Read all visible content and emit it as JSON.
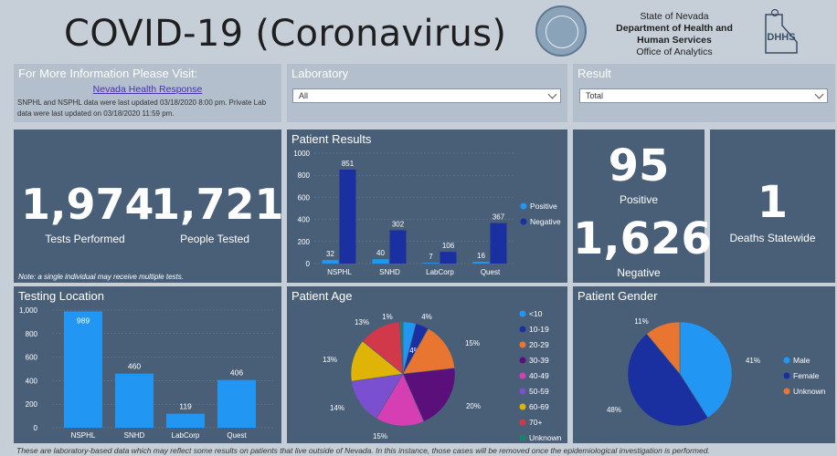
{
  "header": {
    "title": "COVID-19 (Coronavirus)",
    "org_line1": "State of Nevada",
    "org_line2": "Department of Health and",
    "org_line3": "Human Services",
    "org_line4": "Office of Analytics",
    "logo_text": "DHHS"
  },
  "info": {
    "title": "For More Information Please Visit:",
    "link": "Nevada Health Response",
    "updated": "SNPHL and NSPHL data were last updated 03/18/2020 8:00 pm.  Private Lab data were last updated on 03/18/2020 11:59 pm."
  },
  "filters": {
    "laboratory_label": "Laboratory",
    "laboratory_value": "All",
    "result_label": "Result",
    "result_value": "Total"
  },
  "kpis": {
    "tests_performed": "1,974",
    "tests_performed_label": "Tests Performed",
    "people_tested": "1,721",
    "people_tested_label": "People Tested",
    "tests_note": "Note: a single individual may receive multiple tests.",
    "positive": "95",
    "positive_label": "Positive",
    "negative": "1,626",
    "negative_label": "Negative",
    "deaths": "1",
    "deaths_label": "Deaths Statewide"
  },
  "panels": {
    "patient_results": "Patient Results",
    "testing_location": "Testing Location",
    "patient_age": "Patient Age",
    "patient_gender": "Patient Gender"
  },
  "colors": {
    "panel": "#495f78",
    "light_blue": "#2196f3",
    "dark_blue": "#1a2fa0",
    "orange": "#e87530",
    "purple": "#5b0f7a",
    "magenta": "#d63eb4",
    "violet": "#7a4fd0",
    "yellow": "#dfb406",
    "red": "#d1384a",
    "teal": "#18846c"
  },
  "chart_data": [
    {
      "type": "bar",
      "title": "Patient Results",
      "categories": [
        "NSPHL",
        "SNHD",
        "LabCorp",
        "Quest"
      ],
      "series": [
        {
          "name": "Positive",
          "values": [
            32,
            40,
            7,
            16
          ]
        },
        {
          "name": "Negative",
          "values": [
            851,
            302,
            106,
            367
          ]
        }
      ],
      "yticks": [
        "0",
        "200",
        "400",
        "600",
        "800",
        "1000"
      ],
      "ylim": [
        0,
        1000
      ],
      "legend": "right"
    },
    {
      "type": "bar",
      "title": "Testing Location",
      "categories": [
        "NSPHL",
        "SNHD",
        "LabCorp",
        "Quest"
      ],
      "values": [
        989,
        460,
        119,
        406
      ],
      "yticks": [
        "0",
        "200",
        "400",
        "600",
        "800",
        "1,000"
      ],
      "ylim": [
        0,
        1000
      ]
    },
    {
      "type": "pie",
      "title": "Patient Age",
      "labels": [
        "<10",
        "10-19",
        "20-29",
        "30-39",
        "40-49",
        "50-59",
        "60-69",
        "70+",
        "Unknown"
      ],
      "values": [
        4,
        4,
        15,
        20,
        15,
        14,
        13,
        13,
        1
      ],
      "value_labels": [
        "4%",
        "4%",
        "15%",
        "20%",
        "15%",
        "14%",
        "13%",
        "13%",
        "1%"
      ],
      "legend": "right"
    },
    {
      "type": "pie",
      "title": "Patient Gender",
      "labels": [
        "Male",
        "Female",
        "Unknown"
      ],
      "values": [
        41,
        48,
        11
      ],
      "value_labels": [
        "41%",
        "48%",
        "11%"
      ],
      "legend": "right"
    }
  ],
  "footer": "These are laboratory-based data which may reflect some results on patients that live outside of Nevada. In this instance, those cases will be removed once the epidemiological investigation is performed."
}
